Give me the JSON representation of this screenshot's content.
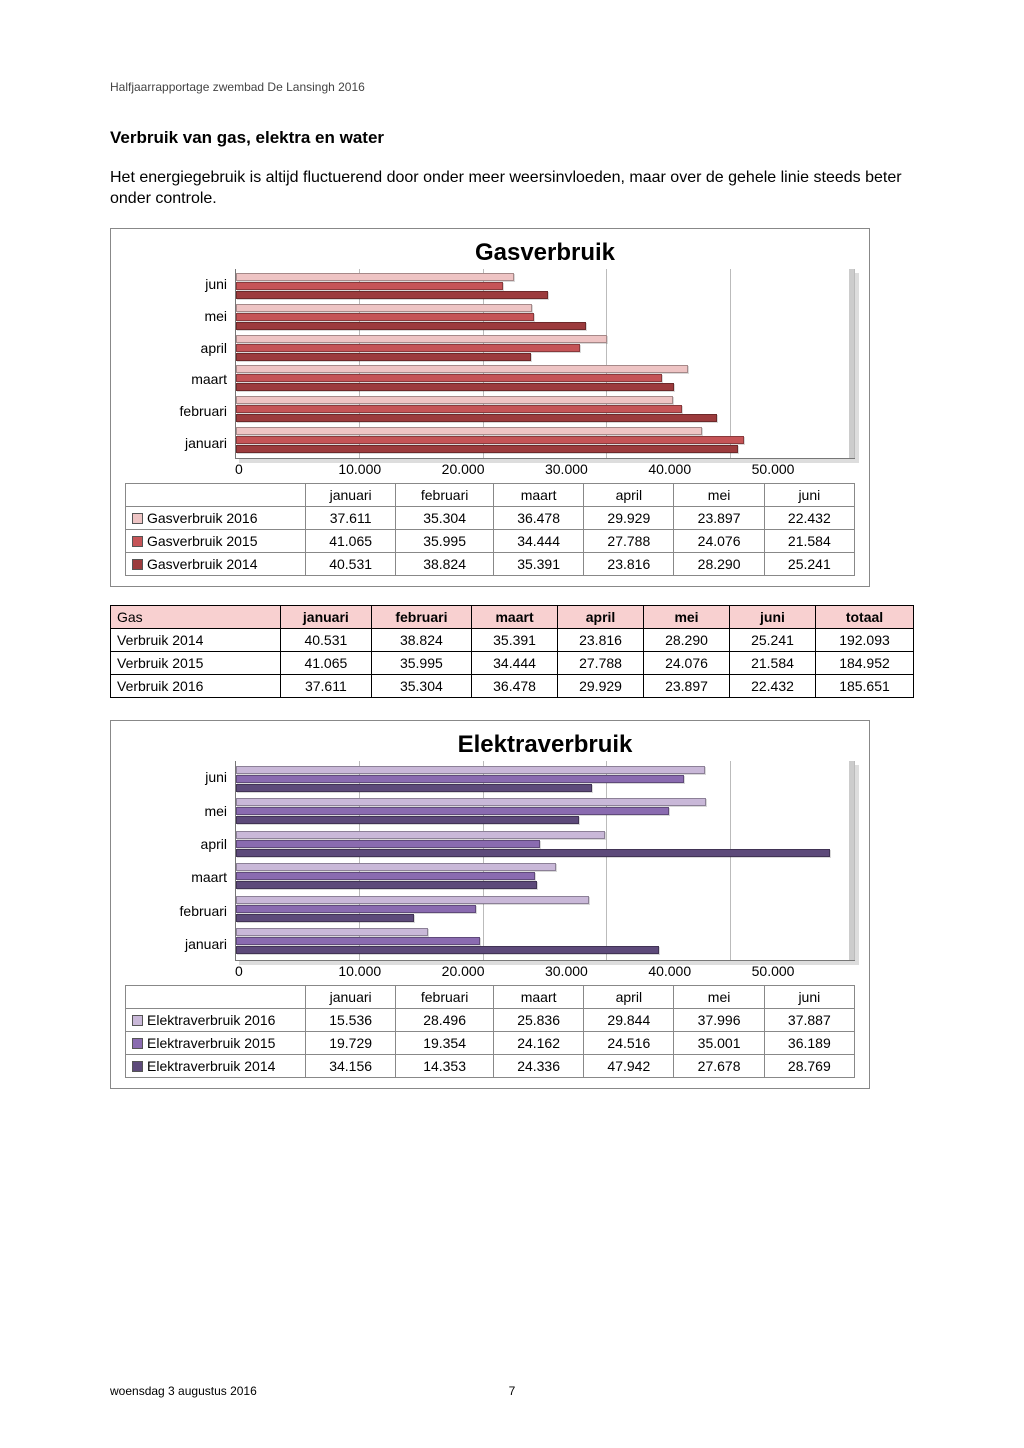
{
  "header_text": "Halfjaarrapportage zwembad De Lansingh  2016",
  "section_title": "Verbruik van gas, elektra en water",
  "body_text": "Het energiegebruik is altijd fluctuerend door onder meer weersinvloeden, maar over de gehele linie steeds beter onder controle.",
  "footer_date": "woensdag 3 augustus 2016",
  "page_number": "7",
  "months": [
    "januari",
    "februari",
    "maart",
    "april",
    "mei",
    "juni"
  ],
  "months_reversed": [
    "juni",
    "mei",
    "april",
    "maart",
    "februari",
    "januari"
  ],
  "gas_chart": {
    "type": "bar-horizontal",
    "title": "Gasverbruik",
    "x_ticks": [
      "0",
      "10.000",
      "20.000",
      "30.000",
      "40.000",
      "50.000"
    ],
    "x_max": 50000,
    "series": [
      {
        "label": "Gasverbruik 2016",
        "color": "#eec4c4",
        "values": [
          37611,
          35304,
          36478,
          29929,
          23897,
          22432
        ]
      },
      {
        "label": "Gasverbruik 2015",
        "color": "#c55457",
        "values": [
          41065,
          35995,
          34444,
          27788,
          24076,
          21584
        ]
      },
      {
        "label": "Gasverbruik 2014",
        "color": "#9c3b3d",
        "values": [
          40531,
          38824,
          35391,
          23816,
          28290,
          25241
        ]
      }
    ],
    "tbl_vals": {
      "r0": {
        "c0": "37.611",
        "c1": "35.304",
        "c2": "36.478",
        "c3": "29.929",
        "c4": "23.897",
        "c5": "22.432"
      },
      "r1": {
        "c0": "41.065",
        "c1": "35.995",
        "c2": "34.444",
        "c3": "27.788",
        "c4": "24.076",
        "c5": "21.584"
      },
      "r2": {
        "c0": "40.531",
        "c1": "38.824",
        "c2": "35.391",
        "c3": "23.816",
        "c4": "28.290",
        "c5": "25.241"
      }
    }
  },
  "gas_summary": {
    "header_bg": "#f8d0d0",
    "title": "Gas",
    "total_label": "totaal",
    "rows": [
      {
        "label": "Verbruik 2014",
        "v": {
          "c0": "40.531",
          "c1": "38.824",
          "c2": "35.391",
          "c3": "23.816",
          "c4": "28.290",
          "c5": "25.241"
        },
        "total": "192.093"
      },
      {
        "label": "Verbruik 2015",
        "v": {
          "c0": "41.065",
          "c1": "35.995",
          "c2": "34.444",
          "c3": "27.788",
          "c4": "24.076",
          "c5": "21.584"
        },
        "total": "184.952"
      },
      {
        "label": "Verbruik 2016",
        "v": {
          "c0": "37.611",
          "c1": "35.304",
          "c2": "36.478",
          "c3": "29.929",
          "c4": "23.897",
          "c5": "22.432"
        },
        "total": "185.651"
      }
    ]
  },
  "elektra_chart": {
    "type": "bar-horizontal",
    "title": "Elektraverbruik",
    "x_ticks": [
      "0",
      "10.000",
      "20.000",
      "30.000",
      "40.000",
      "50.000"
    ],
    "x_max": 50000,
    "series": [
      {
        "label": "Elektraverbruik 2016",
        "color": "#c9b8d8",
        "values": [
          15536,
          28496,
          25836,
          29844,
          37996,
          37887
        ]
      },
      {
        "label": "Elektraverbruik 2015",
        "color": "#8a6bb0",
        "values": [
          19729,
          19354,
          24162,
          24516,
          35001,
          36189
        ]
      },
      {
        "label": "Elektraverbruik 2014",
        "color": "#5d4a7a",
        "values": [
          34156,
          14353,
          24336,
          47942,
          27678,
          28769
        ]
      }
    ],
    "tbl_vals": {
      "r0": {
        "c0": "15.536",
        "c1": "28.496",
        "c2": "25.836",
        "c3": "29.844",
        "c4": "37.996",
        "c5": "37.887"
      },
      "r1": {
        "c0": "19.729",
        "c1": "19.354",
        "c2": "24.162",
        "c3": "24.516",
        "c4": "35.001",
        "c5": "36.189"
      },
      "r2": {
        "c0": "34.156",
        "c1": "14.353",
        "c2": "24.336",
        "c3": "47.942",
        "c4": "27.678",
        "c5": "28.769"
      }
    }
  }
}
